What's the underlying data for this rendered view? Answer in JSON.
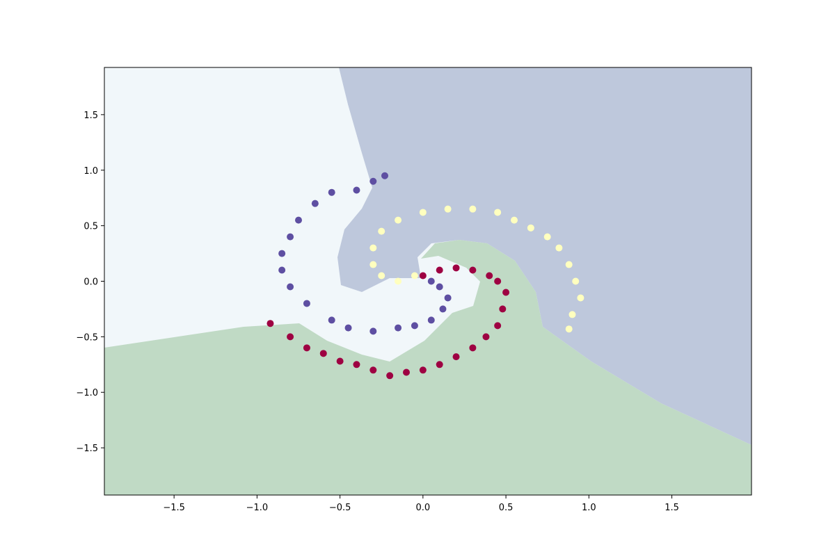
{
  "chart_data": {
    "type": "scatter",
    "xlim": [
      -1.92,
      1.98
    ],
    "ylim": [
      -1.925,
      1.925
    ],
    "xticks": [
      {
        "value": -1.5,
        "label": "−1.5"
      },
      {
        "value": -1.0,
        "label": "−1.0"
      },
      {
        "value": -0.5,
        "label": "−0.5"
      },
      {
        "value": 0,
        "label": "0.0"
      },
      0.5,
      {
        "value": 1.0,
        "label": "1.0"
      },
      1.5
    ],
    "yticks": [
      {
        "value": -1.5,
        "label": "−1.5"
      },
      {
        "value": -1.0,
        "label": "−1.0"
      },
      {
        "value": -0.5,
        "label": "−0.5"
      },
      {
        "value": 0,
        "label": "0.0"
      },
      0.5,
      {
        "value": 1.0,
        "label": "1.0"
      },
      1.5
    ],
    "grid": false,
    "series": [
      {
        "color": "#9e0142",
        "x": [
          0.0,
          0.1,
          0.2,
          0.3,
          0.4,
          0.45,
          0.5,
          0.48,
          0.45,
          0.38,
          0.3,
          0.2,
          0.1,
          0.0,
          -0.1,
          -0.2,
          -0.3,
          -0.4,
          -0.5,
          -0.6,
          -0.7,
          -0.8,
          -0.92
        ],
        "y": [
          0.05,
          0.1,
          0.12,
          0.1,
          0.05,
          0.0,
          -0.1,
          -0.25,
          -0.4,
          -0.5,
          -0.6,
          -0.68,
          -0.75,
          -0.8,
          -0.82,
          -0.85,
          -0.8,
          -0.75,
          -0.72,
          -0.65,
          -0.6,
          -0.5,
          -0.38
        ]
      },
      {
        "color": "#ffffbf",
        "x": [
          -0.05,
          -0.15,
          -0.25,
          -0.3,
          -0.3,
          -0.25,
          -0.15,
          0.0,
          0.15,
          0.3,
          0.45,
          0.55,
          0.65,
          0.75,
          0.82,
          0.88,
          0.92,
          0.95,
          0.9,
          0.88
        ],
        "y": [
          0.05,
          0.0,
          0.05,
          0.15,
          0.3,
          0.45,
          0.55,
          0.62,
          0.65,
          0.65,
          0.62,
          0.55,
          0.48,
          0.4,
          0.3,
          0.15,
          0.0,
          -0.15,
          -0.3,
          -0.43
        ]
      },
      {
        "color": "#5e4fa2",
        "x": [
          0.05,
          0.1,
          0.15,
          0.12,
          0.05,
          -0.05,
          -0.15,
          -0.3,
          -0.45,
          -0.55,
          -0.7,
          -0.8,
          -0.85,
          -0.85,
          -0.8,
          -0.75,
          -0.65,
          -0.55,
          -0.4,
          -0.3,
          -0.23
        ],
        "y": [
          0.0,
          -0.05,
          -0.15,
          -0.25,
          -0.35,
          -0.4,
          -0.42,
          -0.45,
          -0.42,
          -0.35,
          -0.2,
          -0.05,
          0.1,
          0.25,
          0.4,
          0.55,
          0.7,
          0.8,
          0.82,
          0.9,
          0.95
        ]
      }
    ]
  }
}
